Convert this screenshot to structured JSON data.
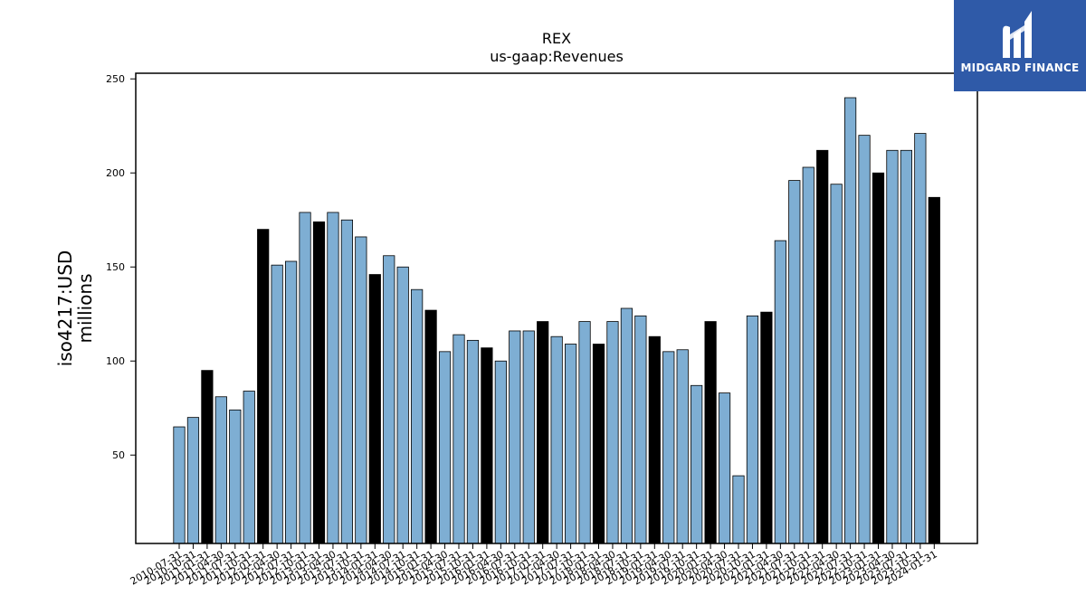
{
  "brand": {
    "logo_text": "MIDGARD FINANCE",
    "background": "#2f5aa8",
    "icon": "midgard-logo-icon"
  },
  "chart_data": {
    "type": "bar",
    "title": "REX",
    "subtitle": "us-gaap:Revenues",
    "ylabel": "iso4217:USD",
    "ylabel2": "millions",
    "xlabel": "",
    "ylim": [
      3,
      253
    ],
    "yticks": [
      50,
      100,
      150,
      200,
      250
    ],
    "grid": false,
    "legend": "none",
    "colors": {
      "regular": "#7eaed3",
      "annual": "#000000",
      "edge": "#000000"
    },
    "categories": [
      "2010-07-31",
      "2010-10-31",
      "2011-01-31",
      "2011-04-30",
      "2011-07-31",
      "2011-10-31",
      "2012-01-31",
      "2012-04-30",
      "2012-07-31",
      "2012-10-31",
      "2013-01-31",
      "2013-04-30",
      "2013-07-31",
      "2013-10-31",
      "2014-01-31",
      "2014-04-30",
      "2014-07-31",
      "2014-10-31",
      "2015-01-31",
      "2015-04-30",
      "2015-07-31",
      "2015-10-31",
      "2016-01-31",
      "2016-04-30",
      "2016-07-31",
      "2016-10-31",
      "2017-01-31",
      "2017-04-30",
      "2017-07-31",
      "2017-10-31",
      "2018-01-31",
      "2018-04-30",
      "2018-07-31",
      "2018-10-31",
      "2019-01-31",
      "2019-04-30",
      "2019-07-31",
      "2019-10-31",
      "2020-01-31",
      "2020-04-30",
      "2020-07-31",
      "2020-10-31",
      "2021-01-31",
      "2021-04-30",
      "2021-07-31",
      "2021-10-31",
      "2022-01-31",
      "2022-04-30",
      "2022-07-31",
      "2022-10-31",
      "2023-01-31",
      "2023-04-30",
      "2023-07-31",
      "2023-10-31",
      "2024-01-31"
    ],
    "values": [
      65,
      70,
      95,
      81,
      74,
      84,
      170,
      151,
      153,
      179,
      174,
      179,
      175,
      166,
      146,
      156,
      150,
      138,
      127,
      105,
      114,
      111,
      107,
      100,
      116,
      116,
      121,
      113,
      109,
      121,
      109,
      121,
      128,
      124,
      113,
      105,
      106,
      87,
      121,
      83,
      39,
      124,
      126,
      164,
      196,
      203,
      212,
      194,
      240,
      220,
      200,
      212,
      212,
      221,
      187
    ],
    "annual": [
      false,
      false,
      true,
      false,
      false,
      false,
      true,
      false,
      false,
      false,
      true,
      false,
      false,
      false,
      true,
      false,
      false,
      false,
      true,
      false,
      false,
      false,
      true,
      false,
      false,
      false,
      true,
      false,
      false,
      false,
      true,
      false,
      false,
      false,
      true,
      false,
      false,
      false,
      true,
      false,
      false,
      false,
      true,
      false,
      false,
      false,
      true,
      false,
      false,
      false,
      true,
      false,
      false,
      false,
      true
    ]
  }
}
